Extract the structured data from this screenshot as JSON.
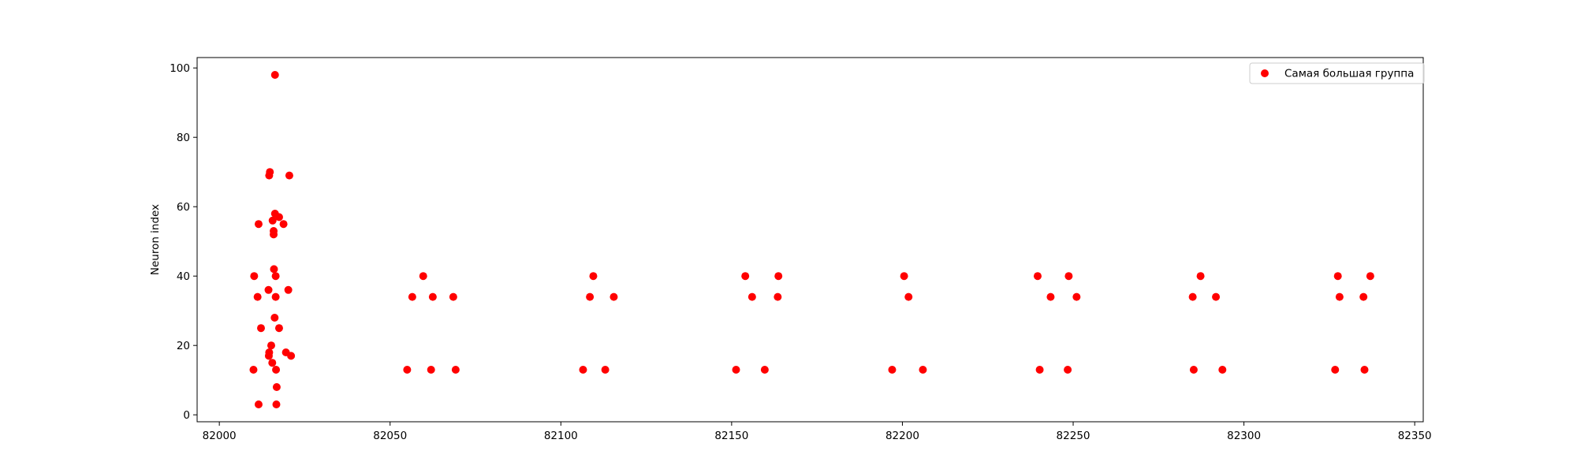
{
  "chart_data": {
    "type": "scatter",
    "title": "",
    "xlabel": "",
    "ylabel": "Neuron index",
    "xlim": [
      81993.5,
      82352.5
    ],
    "ylim": [
      -2,
      103
    ],
    "xticks": [
      82000,
      82050,
      82100,
      82150,
      82200,
      82250,
      82300,
      82350
    ],
    "yticks": [
      0,
      20,
      40,
      60,
      80,
      100
    ],
    "grid": false,
    "legend_position": "upper right",
    "series": [
      {
        "name": "Самая большая группа",
        "color": "#ff0000",
        "marker": "circle",
        "points": [
          [
            82010.0,
            13
          ],
          [
            82010.2,
            40
          ],
          [
            82011.2,
            34
          ],
          [
            82011.5,
            3
          ],
          [
            82011.5,
            55
          ],
          [
            82012.2,
            25
          ],
          [
            82014.4,
            36
          ],
          [
            82014.5,
            17
          ],
          [
            82014.6,
            18
          ],
          [
            82014.6,
            69
          ],
          [
            82014.8,
            70
          ],
          [
            82015.2,
            20
          ],
          [
            82015.5,
            15
          ],
          [
            82015.6,
            56
          ],
          [
            82015.9,
            53
          ],
          [
            82015.9,
            52
          ],
          [
            82016.0,
            42
          ],
          [
            82016.2,
            28
          ],
          [
            82016.3,
            58
          ],
          [
            82016.3,
            98
          ],
          [
            82016.5,
            34
          ],
          [
            82016.5,
            40
          ],
          [
            82016.6,
            13
          ],
          [
            82016.7,
            3
          ],
          [
            82016.8,
            8
          ],
          [
            82017.5,
            57
          ],
          [
            82017.5,
            25
          ],
          [
            82018.8,
            55
          ],
          [
            82019.5,
            18
          ],
          [
            82020.2,
            36
          ],
          [
            82020.5,
            69
          ],
          [
            82021.0,
            17
          ],
          [
            82055.0,
            13
          ],
          [
            82056.5,
            34
          ],
          [
            82059.7,
            40
          ],
          [
            82062.0,
            13
          ],
          [
            82062.5,
            34
          ],
          [
            82068.5,
            34
          ],
          [
            82069.2,
            13
          ],
          [
            82106.5,
            13
          ],
          [
            82108.5,
            34
          ],
          [
            82109.5,
            40
          ],
          [
            82113.0,
            13
          ],
          [
            82115.5,
            34
          ],
          [
            82151.3,
            13
          ],
          [
            82154.0,
            40
          ],
          [
            82156.0,
            34
          ],
          [
            82159.7,
            13
          ],
          [
            82163.5,
            34
          ],
          [
            82163.7,
            40
          ],
          [
            82197.0,
            13
          ],
          [
            82200.5,
            40
          ],
          [
            82201.8,
            34
          ],
          [
            82206.0,
            13
          ],
          [
            82239.6,
            40
          ],
          [
            82240.2,
            13
          ],
          [
            82243.4,
            34
          ],
          [
            82248.4,
            13
          ],
          [
            82248.7,
            40
          ],
          [
            82251.0,
            34
          ],
          [
            82285.0,
            34
          ],
          [
            82285.3,
            13
          ],
          [
            82287.3,
            40
          ],
          [
            82291.8,
            34
          ],
          [
            82293.7,
            13
          ],
          [
            82326.7,
            13
          ],
          [
            82327.5,
            40
          ],
          [
            82328.0,
            34
          ],
          [
            82335.0,
            34
          ],
          [
            82335.3,
            13
          ],
          [
            82337.0,
            40
          ]
        ]
      }
    ]
  }
}
